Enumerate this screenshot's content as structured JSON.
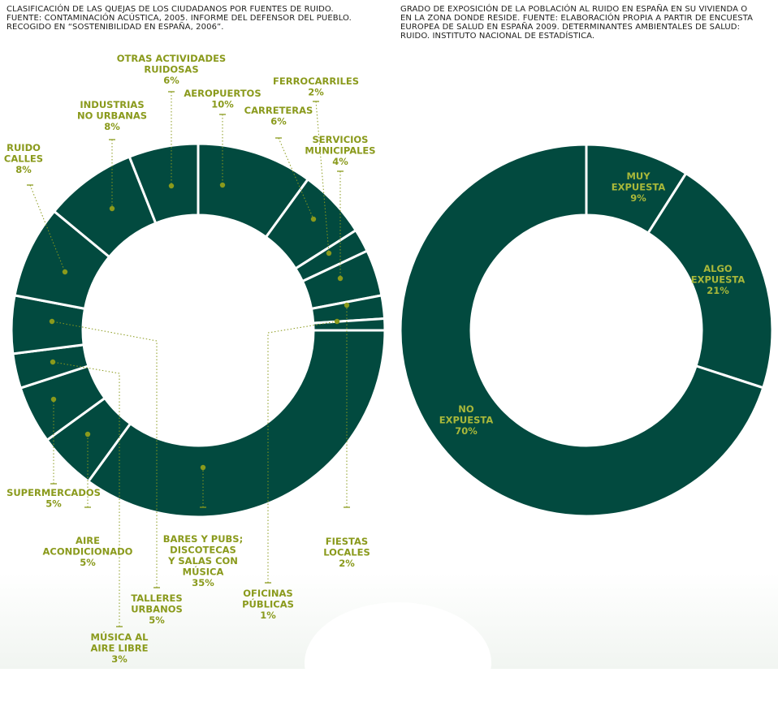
{
  "captions": {
    "left": [
      "CLASIFICACIÓN DE LAS QUEJAS DE LOS CIUDADANOS POR FUENTES DE RUIDO.",
      "FUENTE: CONTAMINACIÓN ACÚSTICA, 2005. INFORME DEL DEFENSOR DEL PUEBLO.",
      "RECOGIDO EN “SOSTENIBILIDAD EN ESPAÑA, 2006”."
    ],
    "right": [
      "GRADO DE EXPOSICIÓN DE LA POBLACIÓN AL RUIDO EN ESPAÑA EN SU VIVIENDA O",
      "EN LA ZONA DONDE RESIDE. FUENTE: ELABORACIÓN PROPIA A PARTIR DE ENCUESTA",
      "EUROPEA DE SALUD EN ESPAÑA 2009. DETERMINANTES AMBIENTALES DE SALUD:",
      "RUIDO. INSTITUTO NACIONAL DE ESTADÍSTICA."
    ]
  },
  "colors": {
    "ring": "#024a3f",
    "label": "#8a9a1c",
    "inner_label": "#a9b83a",
    "leader": "#8a9a1c"
  },
  "chart_data": [
    {
      "type": "pie",
      "donut": true,
      "title": "",
      "unit": "%",
      "slices": [
        {
          "lines": [
            "AEROPUERTOS",
            "10%"
          ],
          "value": 10
        },
        {
          "lines": [
            "CARRETERAS",
            "6%"
          ],
          "value": 6
        },
        {
          "lines": [
            "FERROCARRILES",
            "2%"
          ],
          "value": 2
        },
        {
          "lines": [
            "SERVICIOS",
            "MUNICIPALES",
            "4%"
          ],
          "value": 4
        },
        {
          "lines": [
            "FIESTAS",
            "LOCALES",
            "2%"
          ],
          "value": 2
        },
        {
          "lines": [
            "OFICINAS",
            "PÚBLICAS",
            "1%"
          ],
          "value": 1
        },
        {
          "lines": [
            "BARES Y PUBS;",
            "DISCOTECAS",
            "Y SALAS CON",
            "MÚSICA",
            "35%"
          ],
          "value": 35
        },
        {
          "lines": [
            "AIRE",
            "ACONDICIONADO",
            "5%"
          ],
          "value": 5
        },
        {
          "lines": [
            "SUPERMERCADOS",
            "5%"
          ],
          "value": 5
        },
        {
          "lines": [
            "MÚSICA AL",
            "AIRE LIBRE",
            "3%"
          ],
          "value": 3
        },
        {
          "lines": [
            "TALLERES",
            "URBANOS",
            "5%"
          ],
          "value": 5
        },
        {
          "lines": [
            "RUIDO",
            "CALLES",
            "8%"
          ],
          "value": 8
        },
        {
          "lines": [
            "INDUSTRIAS",
            "NO URBANAS",
            "8%"
          ],
          "value": 8
        },
        {
          "lines": [
            "OTRAS ACTIVIDADES",
            "RUIDOSAS",
            "6%"
          ],
          "value": 6
        }
      ]
    },
    {
      "type": "pie",
      "donut": true,
      "title": "",
      "unit": "%",
      "slices": [
        {
          "lines": [
            "MUY",
            "EXPUESTA",
            "9%"
          ],
          "value": 9
        },
        {
          "lines": [
            "ALGO",
            "EXPUESTA",
            "21%"
          ],
          "value": 21
        },
        {
          "lines": [
            "NO",
            "EXPUESTA",
            "70%"
          ],
          "value": 70
        }
      ]
    }
  ]
}
